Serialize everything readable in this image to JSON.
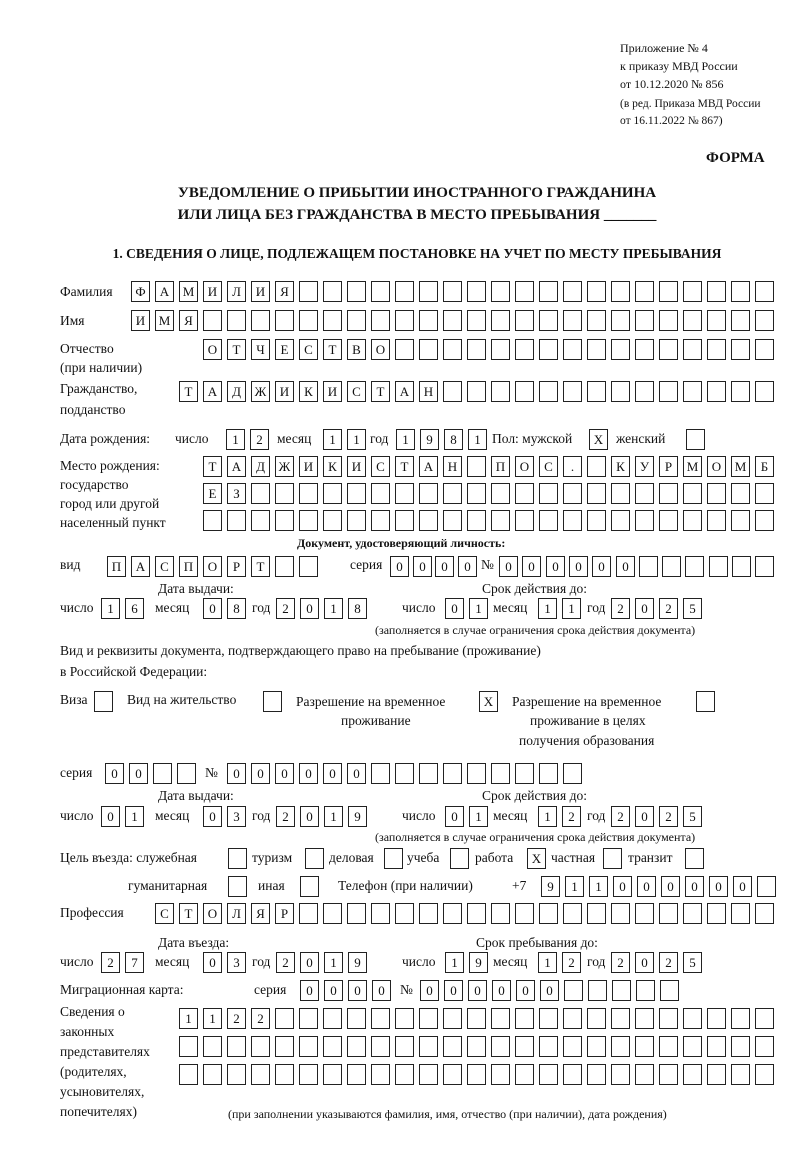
{
  "header": {
    "appendix": "Приложение № 4",
    "order_line1": "к приказу МВД России",
    "order_line2": "от 10.12.2020 № 856",
    "edition_line1": "(в ред. Приказа МВД России",
    "edition_line2": "от 16.11.2022 № 867)",
    "form_label": "ФОРМА",
    "title_line1": "УВЕДОМЛЕНИЕ О ПРИБЫТИИ ИНОСТРАННОГО ГРАЖДАНИНА",
    "title_line2": "ИЛИ ЛИЦА БЕЗ ГРАЖДАНСТВА В МЕСТО ПРЕБЫВАНИЯ _______"
  },
  "section1": {
    "title": "1. СВЕДЕНИЯ О ЛИЦЕ, ПОДЛЕЖАЩЕМ ПОСТАНОВКЕ НА УЧЕТ ПО МЕСТУ ПРЕБЫВАНИЯ"
  },
  "labels": {
    "surname": "Фамилия",
    "name": "Имя",
    "patronymic": "Отчество",
    "patronymic_note": "(при наличии)",
    "citizenship1": "Гражданство,",
    "citizenship2": "подданство",
    "birth_date": "Дата рождения:",
    "day": "число",
    "month": "месяц",
    "year": "год",
    "sex_male": "Пол: мужской",
    "sex_female": "женский",
    "birth_place1": "Место рождения:",
    "birth_place2": "государство",
    "birth_place3": "город или другой",
    "birth_place4": "населенный пункт",
    "id_doc": "Документ, удостоверяющий личность:",
    "kind": "вид",
    "series": "серия",
    "number": "№",
    "issue_date": "Дата выдачи:",
    "valid_until": "Срок действия до:",
    "valid_note": "(заполняется в случае ограничения срока действия документа)",
    "right_doc1": "Вид и реквизиты документа, подтверждающего право на пребывание (проживание)",
    "right_doc2": "в Российской Федерации:",
    "visa": "Виза",
    "residence_permit": "Вид на жительство",
    "temp_permit1": "Разрешение на временное",
    "temp_permit2": "проживание",
    "temp_edu1": "Разрешение на временное",
    "temp_edu2": "проживание в целях",
    "temp_edu3": "получения образования",
    "purpose": "Цель въезда: служебная",
    "tourism": "туризм",
    "business": "деловая",
    "study": "учеба",
    "work": "работа",
    "private": "частная",
    "transit": "транзит",
    "humanitarian": "гуманитарная",
    "other": "иная",
    "phone": "Телефон (при наличии)",
    "phone_prefix": "+7",
    "profession": "Профессия",
    "entry_date": "Дата въезда:",
    "stay_until": "Срок пребывания до:",
    "migration_card": "Миграционная карта:",
    "reps1": "Сведения о",
    "reps2": "законных",
    "reps3": "представителях",
    "reps4": "(родителях,",
    "reps5": "усыновителях,",
    "reps6": "попечителях)",
    "reps_note": "(при заполнении указываются фамилия, имя, отчество (при наличии), дата рождения)"
  },
  "values": {
    "surname": "ФАМИЛИЯ",
    "name": "ИМЯ",
    "patronymic": "ОТЧЕСТВО",
    "citizenship": "ТАДЖИКИСТАН",
    "birth_day": "12",
    "birth_month": "11",
    "birth_year": "1981",
    "sex_male": "X",
    "sex_female": "",
    "birth_place_1": "ТАДЖИКИСТАН ПОС. КУРМОМБ",
    "birth_place_2": "ЕЗ",
    "birth_place_3": "",
    "doc_kind": "ПАСПОРТ",
    "doc_series": "0000",
    "doc_number": "000000",
    "doc_issue_day": "16",
    "doc_issue_month": "08",
    "doc_issue_year": "2018",
    "doc_valid_day": "01",
    "doc_valid_month": "11",
    "doc_valid_year": "2025",
    "visa": "",
    "residence_permit": "",
    "temp_permit": "X",
    "temp_edu": "",
    "right_series": "00",
    "right_number": "000000",
    "right_issue_day": "01",
    "right_issue_month": "03",
    "right_issue_year": "2019",
    "right_valid_day": "01",
    "right_valid_month": "12",
    "right_valid_year": "2025",
    "purpose_official": "",
    "purpose_tourism": "",
    "purpose_business": "",
    "purpose_study": "",
    "purpose_work": "X",
    "purpose_private": "",
    "purpose_transit": "",
    "purpose_humanitarian": "",
    "purpose_other": "",
    "phone": "911000000",
    "profession": "СТОЛЯР",
    "entry_day": "27",
    "entry_month": "03",
    "entry_year": "2019",
    "stay_day": "19",
    "stay_month": "12",
    "stay_year": "2025",
    "mig_series": "0000",
    "mig_number": "000000",
    "reps_1": "1122",
    "reps_2": "",
    "reps_3": ""
  }
}
